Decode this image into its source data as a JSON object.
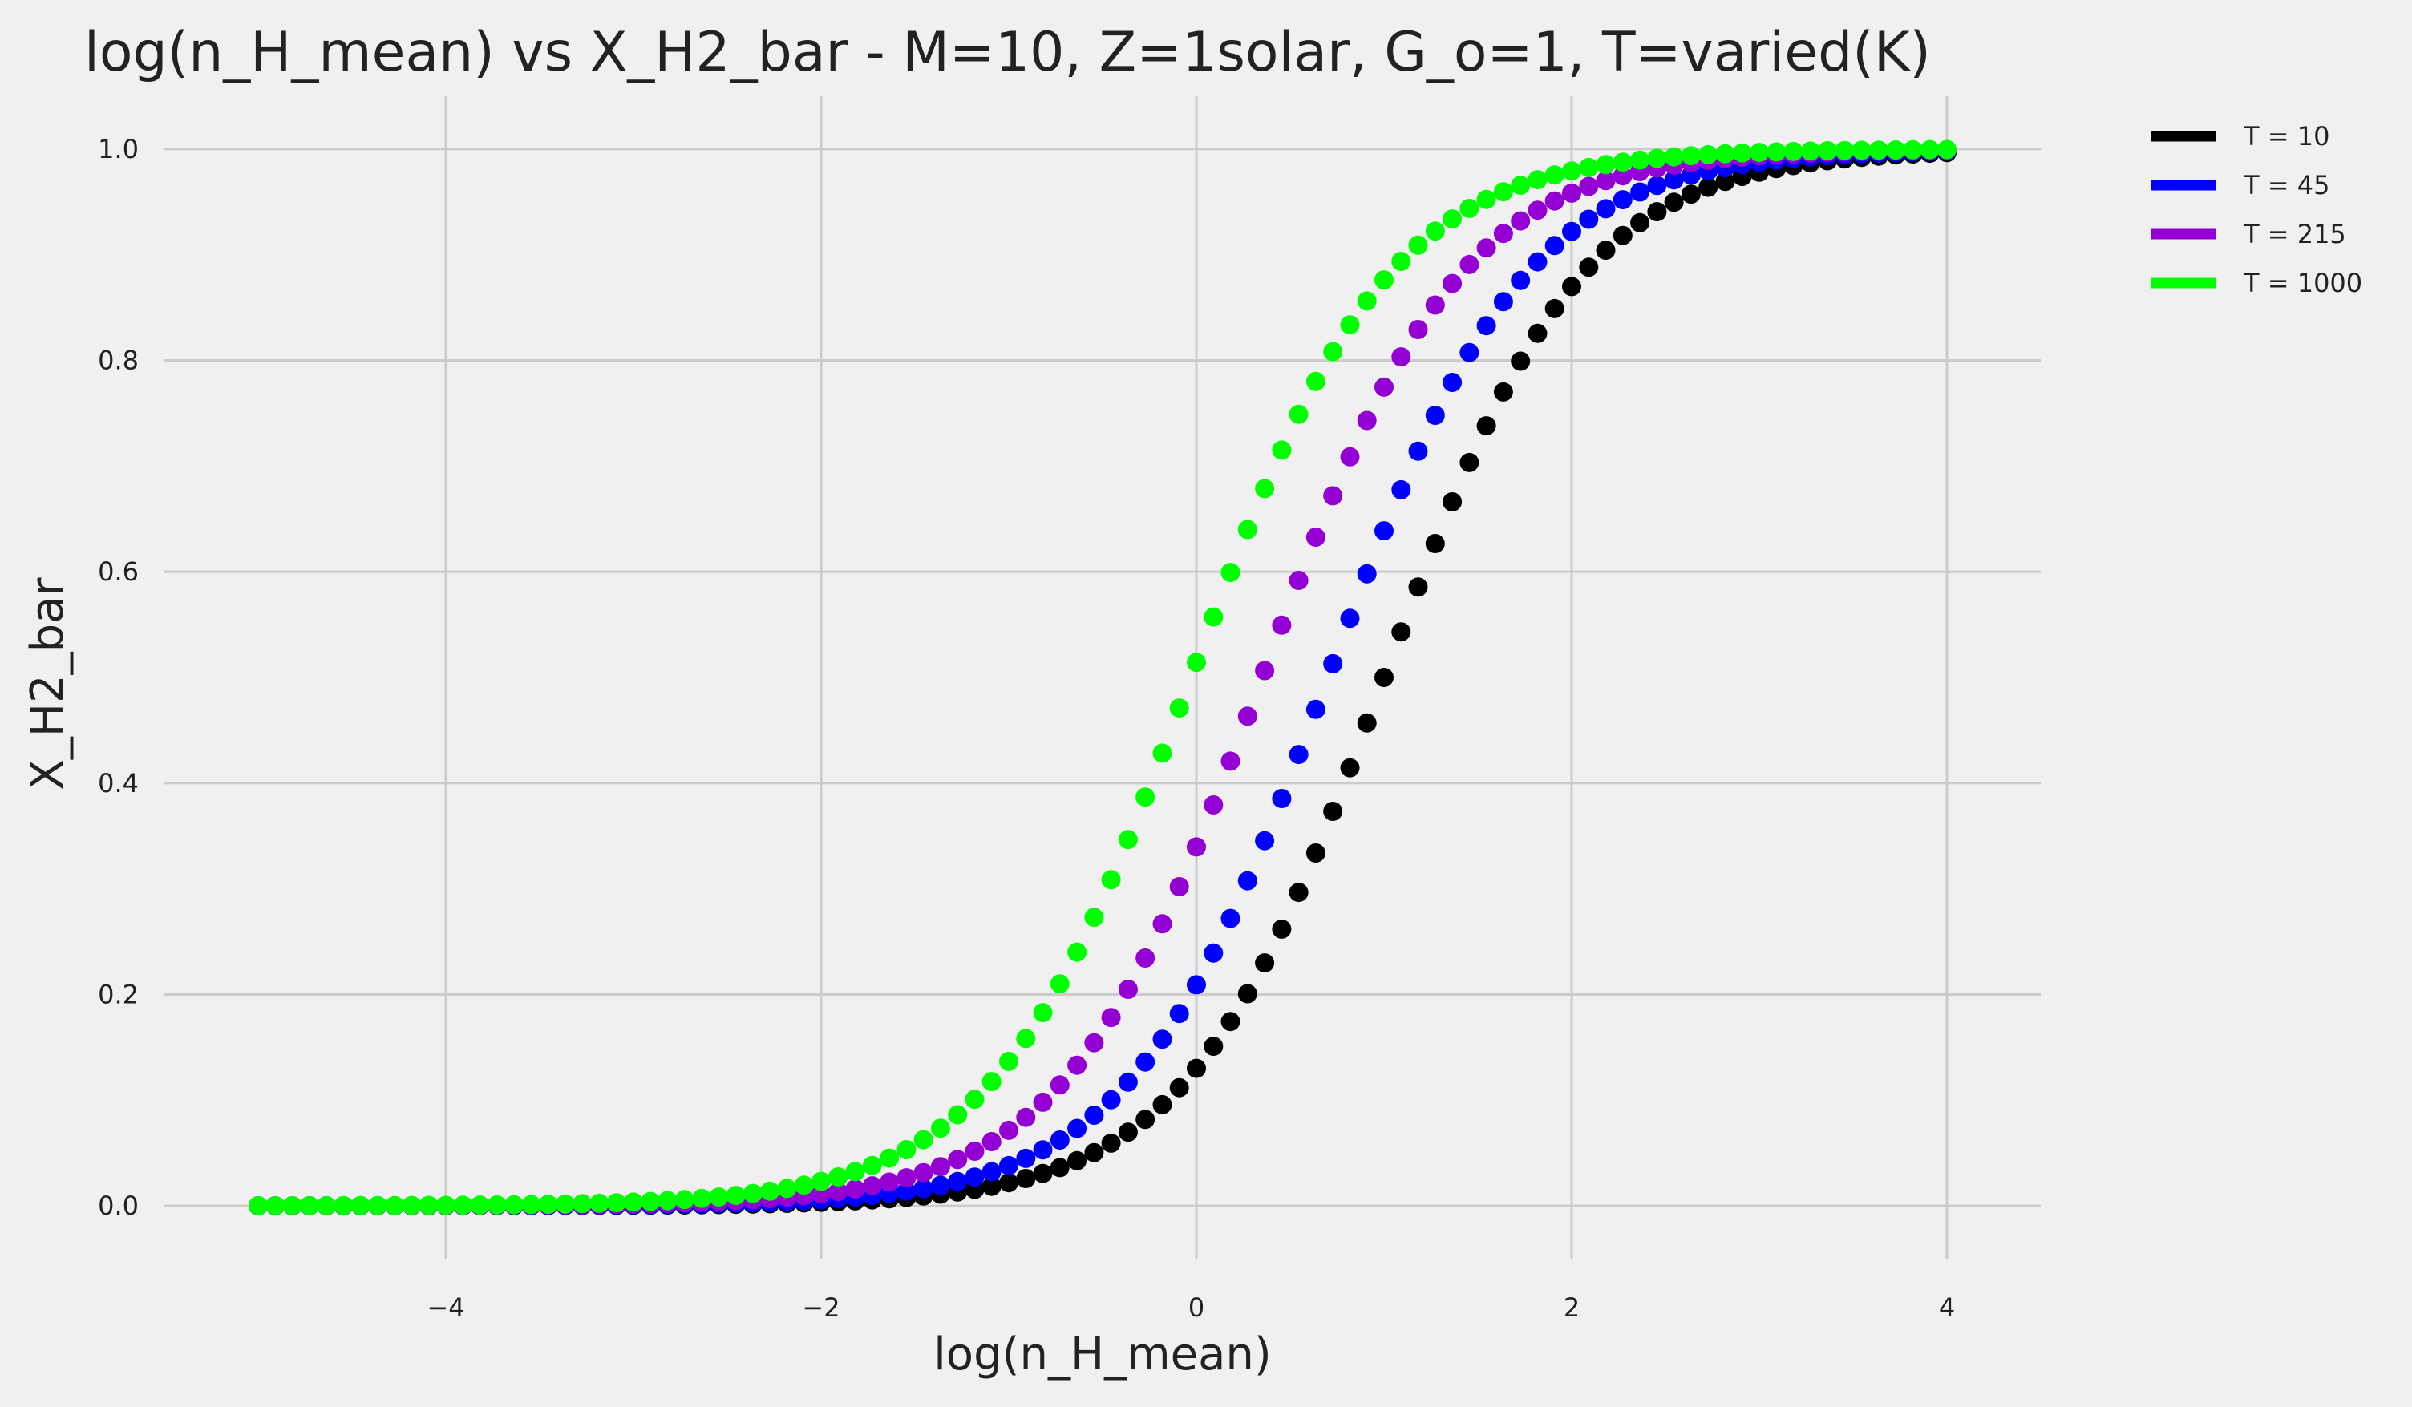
{
  "chart_data": {
    "type": "scatter",
    "title": "log(n_H_mean) vs X_H2_bar - M=10, Z=1solar, G_o=1, T=varied(K)",
    "xlabel": "log(n_H_mean)",
    "ylabel": "X_H2_bar",
    "xlim": [
      -5.5,
      4.5
    ],
    "ylim": [
      -0.05,
      1.05
    ],
    "xticks": [
      -4,
      -2,
      0,
      2,
      4
    ],
    "yticks": [
      0.0,
      0.2,
      0.4,
      0.6,
      0.8,
      1.0
    ],
    "xtick_labels": [
      "−4",
      "−2",
      "0",
      "2",
      "4"
    ],
    "ytick_labels": [
      "0.0",
      "0.2",
      "0.4",
      "0.6",
      "0.8",
      "1.0"
    ],
    "grid": true,
    "legend_position": "outside-top-right",
    "x": {
      "start": -5,
      "stop": 4,
      "count": 100
    },
    "series": [
      {
        "name": "T = 10",
        "color": "#000000",
        "midpoint": 1.0,
        "steepness": 1.9
      },
      {
        "name": "T = 45",
        "color": "#0000ff",
        "midpoint": 0.7,
        "steepness": 1.9
      },
      {
        "name": "T = 215",
        "color": "#9400d3",
        "midpoint": 0.35,
        "steepness": 1.9
      },
      {
        "name": "T = 1000",
        "color": "#00ff00",
        "midpoint": -0.03,
        "steepness": 1.9
      }
    ]
  }
}
